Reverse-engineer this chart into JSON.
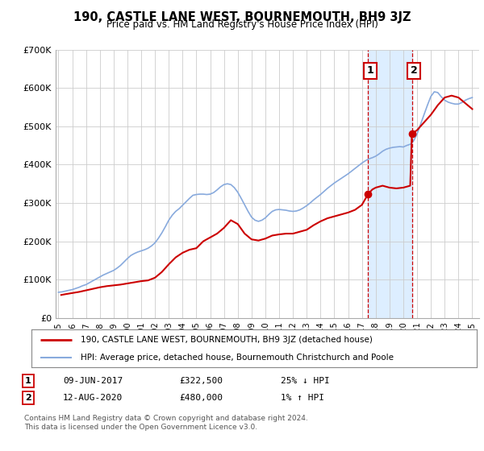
{
  "title": "190, CASTLE LANE WEST, BOURNEMOUTH, BH9 3JZ",
  "subtitle": "Price paid vs. HM Land Registry's House Price Index (HPI)",
  "background_color": "#ffffff",
  "plot_bg_color": "#ffffff",
  "grid_color": "#cccccc",
  "ylim": [
    0,
    700000
  ],
  "yticks": [
    0,
    100000,
    200000,
    300000,
    400000,
    500000,
    600000,
    700000
  ],
  "ytick_labels": [
    "£0",
    "£100K",
    "£200K",
    "£300K",
    "£400K",
    "£500K",
    "£600K",
    "£700K"
  ],
  "xlim_start": 1994.8,
  "xlim_end": 2025.5,
  "xticks": [
    1995,
    1996,
    1997,
    1998,
    1999,
    2000,
    2001,
    2002,
    2003,
    2004,
    2005,
    2006,
    2007,
    2008,
    2009,
    2010,
    2011,
    2012,
    2013,
    2014,
    2015,
    2016,
    2017,
    2018,
    2019,
    2020,
    2021,
    2022,
    2023,
    2024,
    2025
  ],
  "red_line_label": "190, CASTLE LANE WEST, BOURNEMOUTH, BH9 3JZ (detached house)",
  "blue_line_label": "HPI: Average price, detached house, Bournemouth Christchurch and Poole",
  "annotation1_box": "1",
  "annotation1_date": "09-JUN-2017",
  "annotation1_price": "£322,500",
  "annotation1_hpi": "25% ↓ HPI",
  "annotation2_box": "2",
  "annotation2_date": "12-AUG-2020",
  "annotation2_price": "£480,000",
  "annotation2_hpi": "1% ↑ HPI",
  "footnote1": "Contains HM Land Registry data © Crown copyright and database right 2024.",
  "footnote2": "This data is licensed under the Open Government Licence v3.0.",
  "marker1_x": 2017.44,
  "marker1_y": 322500,
  "marker2_x": 2020.62,
  "marker2_y": 480000,
  "vline1_x": 2017.44,
  "vline2_x": 2020.62,
  "shade_start": 2017.44,
  "shade_end": 2020.62,
  "red_color": "#cc0000",
  "blue_color": "#88aadd",
  "shade_color": "#ddeeff",
  "marker_color": "#cc0000",
  "hpi_x": [
    1995.0,
    1995.25,
    1995.5,
    1995.75,
    1996.0,
    1996.25,
    1996.5,
    1996.75,
    1997.0,
    1997.25,
    1997.5,
    1997.75,
    1998.0,
    1998.25,
    1998.5,
    1998.75,
    1999.0,
    1999.25,
    1999.5,
    1999.75,
    2000.0,
    2000.25,
    2000.5,
    2000.75,
    2001.0,
    2001.25,
    2001.5,
    2001.75,
    2002.0,
    2002.25,
    2002.5,
    2002.75,
    2003.0,
    2003.25,
    2003.5,
    2003.75,
    2004.0,
    2004.25,
    2004.5,
    2004.75,
    2005.0,
    2005.25,
    2005.5,
    2005.75,
    2006.0,
    2006.25,
    2006.5,
    2006.75,
    2007.0,
    2007.25,
    2007.5,
    2007.75,
    2008.0,
    2008.25,
    2008.5,
    2008.75,
    2009.0,
    2009.25,
    2009.5,
    2009.75,
    2010.0,
    2010.25,
    2010.5,
    2010.75,
    2011.0,
    2011.25,
    2011.5,
    2011.75,
    2012.0,
    2012.25,
    2012.5,
    2012.75,
    2013.0,
    2013.25,
    2013.5,
    2013.75,
    2014.0,
    2014.25,
    2014.5,
    2014.75,
    2015.0,
    2015.25,
    2015.5,
    2015.75,
    2016.0,
    2016.25,
    2016.5,
    2016.75,
    2017.0,
    2017.25,
    2017.5,
    2017.75,
    2018.0,
    2018.25,
    2018.5,
    2018.75,
    2019.0,
    2019.25,
    2019.5,
    2019.75,
    2020.0,
    2020.25,
    2020.5,
    2020.75,
    2021.0,
    2021.25,
    2021.5,
    2021.75,
    2022.0,
    2022.25,
    2022.5,
    2022.75,
    2023.0,
    2023.25,
    2023.5,
    2023.75,
    2024.0,
    2024.25,
    2024.5,
    2024.75,
    2025.0
  ],
  "hpi_y": [
    67000,
    68000,
    70000,
    72000,
    74000,
    77000,
    80000,
    84000,
    87000,
    92000,
    97000,
    102000,
    107000,
    112000,
    116000,
    120000,
    124000,
    130000,
    137000,
    146000,
    155000,
    163000,
    168000,
    172000,
    175000,
    178000,
    182000,
    188000,
    196000,
    208000,
    222000,
    238000,
    255000,
    268000,
    278000,
    285000,
    294000,
    303000,
    312000,
    320000,
    322000,
    323000,
    323000,
    322000,
    323000,
    327000,
    334000,
    342000,
    348000,
    350000,
    348000,
    340000,
    328000,
    312000,
    295000,
    278000,
    263000,
    255000,
    252000,
    255000,
    261000,
    270000,
    278000,
    282000,
    283000,
    282000,
    281000,
    279000,
    278000,
    279000,
    282000,
    287000,
    293000,
    300000,
    308000,
    315000,
    322000,
    330000,
    338000,
    345000,
    352000,
    358000,
    364000,
    370000,
    376000,
    383000,
    390000,
    397000,
    404000,
    410000,
    415000,
    418000,
    422000,
    428000,
    435000,
    440000,
    443000,
    445000,
    446000,
    447000,
    446000,
    450000,
    453000,
    462000,
    480000,
    505000,
    530000,
    555000,
    578000,
    590000,
    588000,
    577000,
    568000,
    563000,
    560000,
    558000,
    558000,
    562000,
    568000,
    572000,
    575000
  ],
  "price_x": [
    1995.2,
    1995.5,
    1996.0,
    1996.5,
    1997.0,
    1997.5,
    1998.0,
    1998.5,
    1999.0,
    1999.5,
    2000.0,
    2000.5,
    2001.0,
    2001.5,
    2002.0,
    2002.5,
    2003.0,
    2003.5,
    2004.0,
    2004.5,
    2005.0,
    2005.5,
    2006.0,
    2006.5,
    2007.0,
    2007.5,
    2008.0,
    2008.5,
    2009.0,
    2009.5,
    2010.0,
    2010.5,
    2011.0,
    2011.5,
    2012.0,
    2012.5,
    2013.0,
    2013.5,
    2014.0,
    2014.5,
    2015.0,
    2015.5,
    2016.0,
    2016.5,
    2017.0,
    2017.44,
    2017.75,
    2018.0,
    2018.5,
    2019.0,
    2019.5,
    2020.0,
    2020.5,
    2020.62,
    2021.0,
    2021.5,
    2022.0,
    2022.5,
    2023.0,
    2023.5,
    2024.0,
    2024.5,
    2025.0
  ],
  "price_y": [
    60000,
    62000,
    65000,
    68000,
    72000,
    76000,
    80000,
    83000,
    85000,
    87000,
    90000,
    93000,
    96000,
    98000,
    105000,
    120000,
    140000,
    158000,
    170000,
    178000,
    182000,
    200000,
    210000,
    220000,
    235000,
    255000,
    245000,
    220000,
    205000,
    202000,
    207000,
    215000,
    218000,
    220000,
    220000,
    225000,
    230000,
    242000,
    252000,
    260000,
    265000,
    270000,
    275000,
    282000,
    295000,
    322500,
    335000,
    340000,
    345000,
    340000,
    338000,
    340000,
    345000,
    480000,
    490000,
    510000,
    530000,
    555000,
    575000,
    580000,
    575000,
    560000,
    545000
  ]
}
